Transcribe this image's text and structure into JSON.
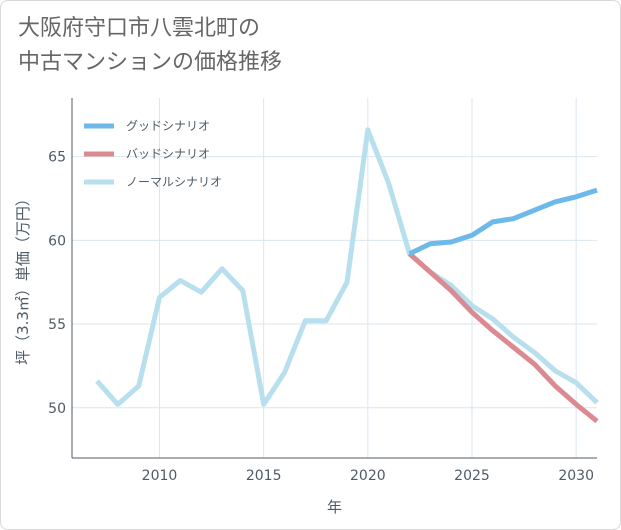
{
  "title_lines": [
    "大阪府守口市八雲北町の",
    "中古マンションの価格推移"
  ],
  "chart_data": {
    "type": "line",
    "title": "大阪府守口市八雲北町の中古マンションの価格推移",
    "xlabel": "年",
    "ylabel": "坪（3.3㎡）単価（万円）",
    "xlim": [
      2005.8,
      2031
    ],
    "ylim": [
      47,
      68.5
    ],
    "x_ticks": [
      2010,
      2015,
      2020,
      2025,
      2030
    ],
    "y_ticks": [
      50,
      55,
      60,
      65
    ],
    "grid": true,
    "legend_position": "top-left",
    "series": [
      {
        "name": "グッドシナリオ",
        "color": "#6cb9ea",
        "x": [
          2022,
          2023,
          2024,
          2025,
          2026,
          2027,
          2028,
          2029,
          2030,
          2031
        ],
        "values": [
          59.2,
          59.8,
          59.9,
          60.3,
          61.1,
          61.3,
          61.8,
          62.3,
          62.6,
          63.0
        ]
      },
      {
        "name": "バッドシナリオ",
        "color": "#dc8a91",
        "x": [
          2022,
          2023,
          2024,
          2025,
          2026,
          2027,
          2028,
          2029,
          2030,
          2031
        ],
        "values": [
          59.2,
          58.1,
          57.0,
          55.7,
          54.6,
          53.6,
          52.6,
          51.3,
          50.2,
          49.2
        ]
      },
      {
        "name": "ノーマルシナリオ",
        "color": "#b8dfee",
        "x": [
          2007,
          2008,
          2009,
          2010,
          2011,
          2012,
          2013,
          2014,
          2015,
          2016,
          2017,
          2018,
          2019,
          2020,
          2021,
          2022,
          2023,
          2024,
          2025,
          2026,
          2027,
          2028,
          2029,
          2030,
          2031
        ],
        "values": [
          51.6,
          50.2,
          51.3,
          56.6,
          57.6,
          56.9,
          58.3,
          57.0,
          50.2,
          52.1,
          55.2,
          55.2,
          57.5,
          66.6,
          63.4,
          59.2,
          58.1,
          57.3,
          56.1,
          55.3,
          54.2,
          53.3,
          52.2,
          51.5,
          50.3
        ]
      }
    ]
  }
}
